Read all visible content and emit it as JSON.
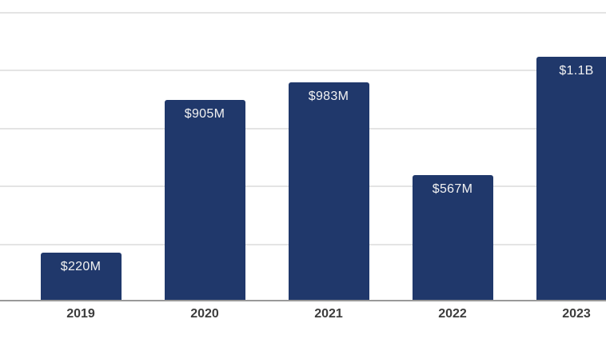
{
  "chart_data": {
    "type": "bar",
    "title": "",
    "xlabel": "",
    "ylabel": "",
    "categories": [
      "2019",
      "2020",
      "2021",
      "2022",
      "2023"
    ],
    "values": [
      220,
      905,
      983,
      567,
      1100
    ],
    "value_labels": [
      "$220M",
      "$905M",
      "$983M",
      "$567M",
      "$1.1B"
    ],
    "ylim": [
      0,
      1300
    ],
    "grid": "horizontal",
    "gridline_count": 6,
    "legend": "none",
    "colors": {
      "bar": "#20386B",
      "bar_label": "#F2F2F2",
      "gridline": "#E4E4E4",
      "axis_line": "#999999",
      "tick_label": "#3C3C3C",
      "background": "#FFFFFF"
    }
  }
}
